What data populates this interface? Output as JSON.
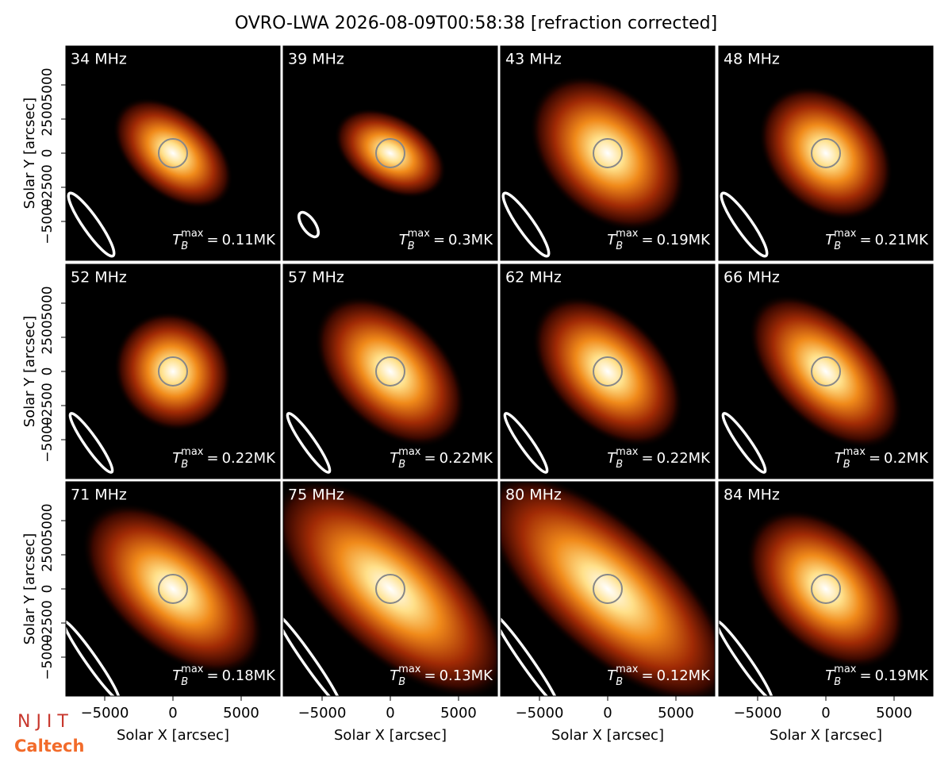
{
  "logos": [
    "N J I T",
    "Caltech"
  ],
  "chart_data": {
    "type": "image-grid",
    "title": "OVRO-LWA 2026-08-09T00:58:38 [refraction corrected]",
    "xlabel": "Solar X [arcsec]",
    "ylabel": "Solar Y [arcsec]",
    "xlim": [
      -7850,
      7850
    ],
    "ylim": [
      -7850,
      7850
    ],
    "xticks": [
      {
        "value": -5000,
        "label": "−5000"
      },
      0,
      5000
    ],
    "yticks": [
      {
        "value": -5000,
        "label": "−5000"
      },
      {
        "value": -2500,
        "label": "−2500"
      },
      0,
      2500,
      5000
    ],
    "tb_prefix": {
      "symbol": "T",
      "sub": "B",
      "sup": "max",
      "eq": "="
    },
    "panels": [
      {
        "label": "34 MHz",
        "tb_max": "0.11MK"
      },
      {
        "label": "39 MHz",
        "tb_max": "0.3MK"
      },
      {
        "label": "43 MHz",
        "tb_max": "0.19MK"
      },
      {
        "label": "48 MHz",
        "tb_max": "0.21MK"
      },
      {
        "label": "52 MHz",
        "tb_max": "0.22MK"
      },
      {
        "label": "57 MHz",
        "tb_max": "0.22MK"
      },
      {
        "label": "62 MHz",
        "tb_max": "0.22MK"
      },
      {
        "label": "66 MHz",
        "tb_max": "0.2MK"
      },
      {
        "label": "71 MHz",
        "tb_max": "0.18MK"
      },
      {
        "label": "75 MHz",
        "tb_max": "0.13MK"
      },
      {
        "label": "80 MHz",
        "tb_max": "0.12MK"
      },
      {
        "label": "84 MHz",
        "tb_max": "0.19MK"
      }
    ]
  }
}
